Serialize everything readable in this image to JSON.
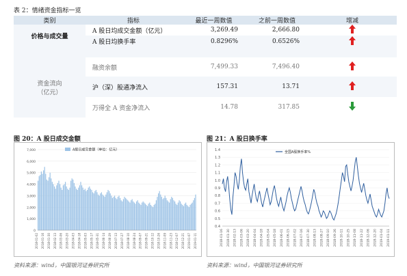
{
  "table": {
    "title": "表 2：情绪资金指标一览",
    "headers": [
      "类别",
      "指标",
      "最近一周数值",
      "之前一周数值",
      "增减"
    ],
    "groups": [
      {
        "category": "价格与成交量",
        "rows": [
          {
            "indicator": "A 股日均成交金额（亿元）",
            "recent": "3,269.49",
            "previous": "2,666.80",
            "trend": "up"
          },
          {
            "indicator": "A 股日均换手率",
            "recent": "0.8296%",
            "previous": "0.6526%",
            "trend": "up"
          }
        ]
      },
      {
        "category": "资金流向\n（亿元）",
        "rows": [
          {
            "indicator": "融资余额",
            "recent": "7,499.33",
            "previous": "7,496.40",
            "trend": "up"
          },
          {
            "indicator": "沪（深）股通净流入",
            "recent": "157.31",
            "previous": "13.71",
            "trend": "up"
          },
          {
            "indicator": "万得全 A 资金净流入",
            "recent": "14.78",
            "previous": "317.85",
            "trend": "down"
          }
        ]
      }
    ],
    "colors": {
      "up": "#e02020",
      "down": "#2a9a3a",
      "header_bg": "#dce6f0"
    }
  },
  "chart20": {
    "title": "图 20：A 股日成交金额",
    "source": "资料来源：wind，中国银河证券研究所",
    "chart_data": {
      "type": "bar",
      "legend": "A股日成交金额（单位：亿元）",
      "yticks": [
        "7,000",
        "6,000",
        "5,000",
        "4,000",
        "3,000",
        "2,000",
        "1,000",
        "0"
      ],
      "ylim": [
        0,
        7000
      ],
      "xticks": [
        "2018-01-02",
        "2018-01-16",
        "2018-01-30",
        "2018-02-13",
        "2018-03-06",
        "2018-03-20",
        "2018-04-03",
        "2018-04-18",
        "2018-05-03",
        "2018-05-17",
        "2018-05-31",
        "2018-06-14",
        "2018-06-29",
        "2018-07-13",
        "2018-07-27",
        "2018-08-10",
        "2018-08-24",
        "2018-09-07",
        "2018-09-21",
        "2018-10-12",
        "2018-10-26",
        "2018-11-09",
        "2018-11-23",
        "2018-12-07",
        "2018-12-21",
        "2019-01-07",
        "2019-01-11"
      ],
      "values": [
        4300,
        4700,
        4800,
        5100,
        4900,
        5200,
        5500,
        4900,
        4400,
        4300,
        4600,
        5000,
        4500,
        4200,
        4000,
        3800,
        3600,
        3900,
        4100,
        4300,
        4000,
        3700,
        3500,
        3900,
        4000,
        4200,
        3800,
        3600,
        3500,
        3700,
        4300,
        4500,
        4400,
        4100,
        3800,
        3600,
        3500,
        3700,
        3900,
        4200,
        3900,
        3700,
        3500,
        3600,
        3400,
        3500,
        3700,
        3800,
        3600,
        3500,
        3300,
        3200,
        3400,
        3500,
        3300,
        3100,
        3000,
        3200,
        3300,
        3100,
        3000,
        2900,
        3100,
        3300,
        3500,
        3400,
        3200,
        3000,
        2800,
        2900,
        3000,
        2800,
        2700,
        2900,
        3000,
        2800,
        2600,
        2500,
        2700,
        2900,
        2800,
        2700,
        2600,
        2500,
        2400,
        2600,
        2700,
        2500,
        2400,
        2300,
        2500,
        2600,
        2400,
        2300,
        2200,
        2400,
        2500,
        2400,
        2300,
        2200,
        2100,
        2300,
        2400,
        2200,
        2100,
        2000,
        2200,
        2300,
        2600,
        2900,
        3200,
        3400,
        3100,
        2900,
        2700,
        2800,
        3000,
        2800,
        2600,
        2500,
        2400,
        2700,
        2900,
        2800,
        2600,
        2500,
        2300,
        2200,
        2400,
        2600,
        2500,
        2300,
        2200,
        2100,
        2300,
        2400,
        2200,
        2100,
        2000,
        2200,
        2300,
        2400,
        2600,
        2800,
        3100
      ]
    }
  },
  "chart21": {
    "title": "图 21：A 股日换手率",
    "source": "资料来源：wind，中国银河证券研究所",
    "chart_data": {
      "type": "line",
      "legend": "全国A股换手率%",
      "yticks": [
        "1.4",
        "1.3",
        "1.2",
        "1.1",
        "1.0",
        "0.9",
        "0.8",
        "0.7",
        "0.6",
        "0.5",
        "0.4"
      ],
      "ylim": [
        0.4,
        1.4
      ],
      "xticks": [
        "2018-01-16",
        "2018-01-30",
        "2018-02-13",
        "2018-03-06",
        "2018-03-20",
        "2018-04-04",
        "2018-04-18",
        "2018-05-04",
        "2018-05-18",
        "2018-06-01",
        "2018-06-15",
        "2018-07-02",
        "2018-07-16",
        "2018-07-30",
        "2018-08-13",
        "2018-08-27",
        "2018-09-10",
        "2018-09-26",
        "2018-10-11",
        "2018-10-25",
        "2018-11-08",
        "2018-11-22",
        "2018-12-06",
        "2018-12-20",
        "2019-01-04",
        "2019-01-11"
      ],
      "values": [
        0.95,
        1.02,
        0.9,
        0.85,
        0.98,
        1.05,
        0.92,
        0.75,
        0.62,
        0.55,
        0.78,
        0.93,
        1.1,
        1.05,
        0.95,
        0.88,
        1.0,
        1.18,
        1.28,
        1.1,
        0.98,
        0.9,
        0.87,
        0.95,
        1.02,
        0.85,
        0.78,
        0.7,
        0.8,
        0.88,
        0.95,
        0.84,
        0.76,
        0.72,
        0.8,
        0.86,
        0.78,
        0.7,
        0.65,
        0.72,
        0.78,
        0.84,
        0.9,
        0.82,
        0.75,
        0.68,
        0.72,
        0.8,
        0.88,
        0.93,
        0.85,
        0.76,
        0.7,
        0.66,
        0.72,
        0.78,
        0.7,
        0.64,
        0.6,
        0.66,
        0.72,
        0.8,
        0.86,
        0.9,
        0.84,
        0.76,
        0.7,
        0.64,
        0.6,
        0.62,
        0.68,
        0.74,
        0.8,
        0.86,
        0.92,
        0.86,
        0.78,
        0.72,
        0.68,
        0.62,
        0.58,
        0.56,
        0.6,
        0.66,
        0.72,
        0.8,
        0.88,
        0.84,
        0.76,
        0.7,
        0.66,
        0.6,
        0.56,
        0.52,
        0.55,
        0.6,
        0.58,
        0.54,
        0.5,
        0.52,
        0.56,
        0.6,
        0.58,
        0.54,
        0.5,
        0.48,
        0.52,
        0.56,
        0.62,
        0.7,
        0.8,
        0.9,
        1.0,
        1.1,
        1.05,
        0.98,
        1.18,
        1.2,
        1.08,
        0.98,
        0.92,
        0.86,
        0.92,
        1.0,
        1.12,
        1.24,
        1.3,
        1.18,
        1.06,
        0.96,
        0.9,
        0.84,
        0.9,
        0.96,
        0.88,
        0.8,
        0.74,
        0.7,
        0.76,
        0.82,
        0.74,
        0.66,
        0.62,
        0.58,
        0.54,
        0.52,
        0.56,
        0.62,
        0.58,
        0.54,
        0.52,
        0.56,
        0.6,
        0.7,
        0.82,
        0.9,
        0.8,
        0.76
      ]
    }
  }
}
